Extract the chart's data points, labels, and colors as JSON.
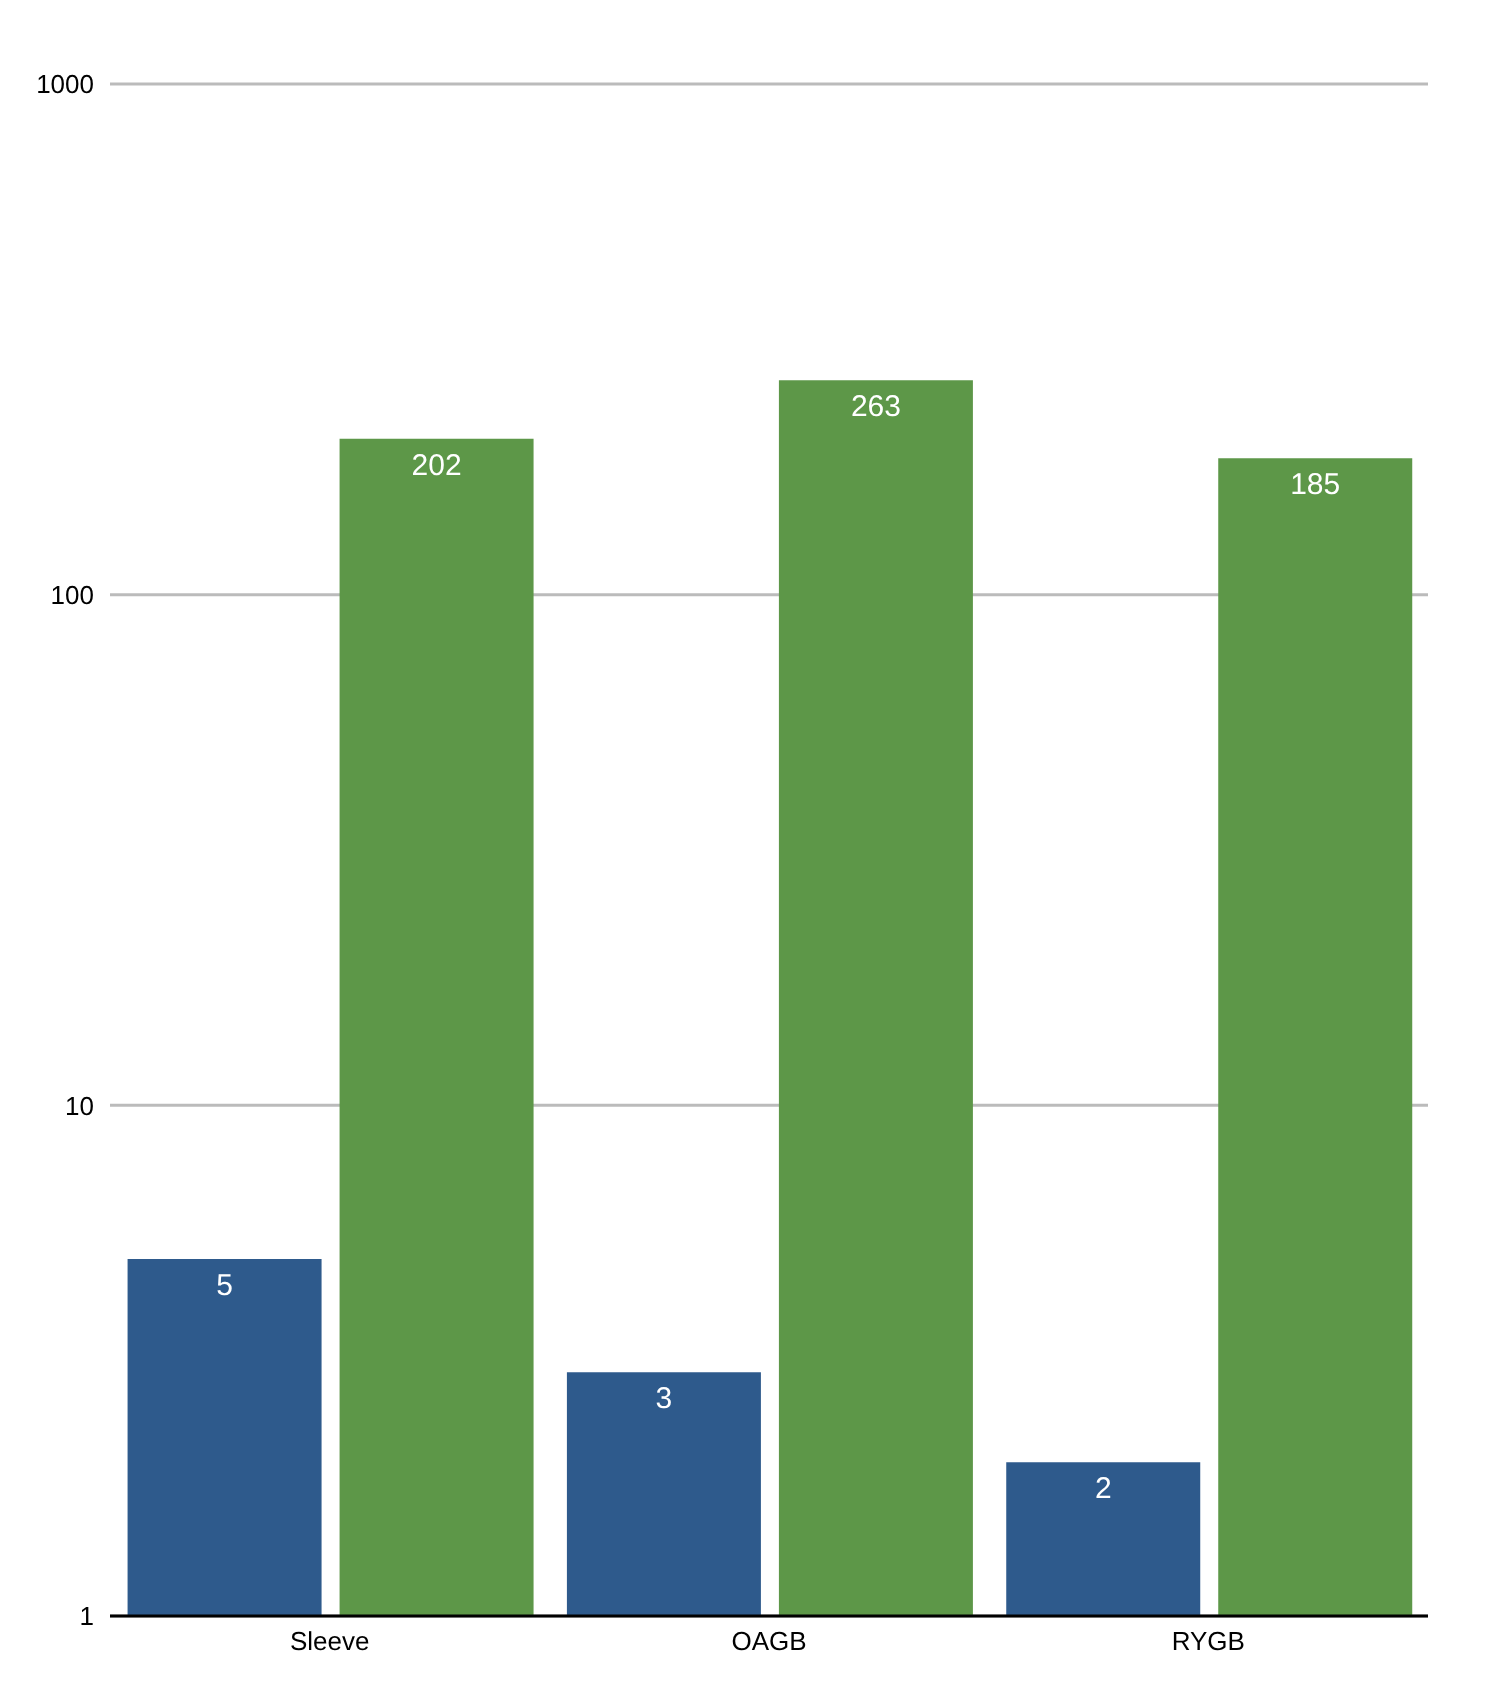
{
  "chart_data": {
    "type": "bar",
    "categories": [
      "Sleeve",
      "OAGB",
      "RYGB"
    ],
    "series": [
      {
        "color": "#2e5a8c",
        "values": [
          5,
          3,
          2
        ]
      },
      {
        "color": "#5d9748",
        "values": [
          202,
          263,
          185
        ]
      }
    ],
    "log": true,
    "ylim": [
      1,
      1000
    ],
    "yticks": [
      1,
      10,
      100,
      1000
    ],
    "grid": "y",
    "data_labels": true
  }
}
